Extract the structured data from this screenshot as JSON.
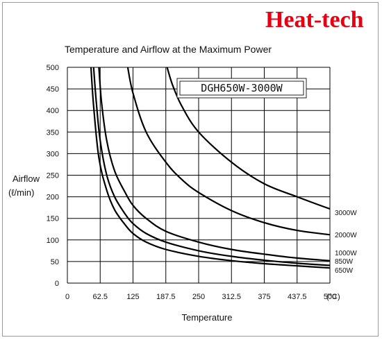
{
  "brand": "Heat-tech",
  "chart_data": {
    "type": "line",
    "title": "Temperature and Airflow at the Maximum Power",
    "model_label": "DGH650W-3000W",
    "xlabel": "Temperature",
    "x_unit": "(°C)",
    "ylabel": "Airflow",
    "y_unit": "(ℓ/min)",
    "xlim": [
      0,
      500
    ],
    "ylim": [
      0,
      500
    ],
    "x_ticks": [
      "0",
      "62.5",
      "125",
      "187.5",
      "250",
      "312.5",
      "375",
      "437.5",
      "500"
    ],
    "y_ticks": [
      "0",
      "50",
      "100",
      "150",
      "200",
      "250",
      "300",
      "350",
      "400",
      "450",
      "500"
    ],
    "grid": true,
    "series": [
      {
        "name": "650W",
        "x": [
          45,
          50,
          60,
          75,
          90,
          110,
          125,
          150,
          187.5,
          250,
          312.5,
          375,
          437.5,
          500,
          535
        ],
        "y": [
          500,
          410,
          290,
          215,
          170,
          135,
          115,
          95,
          78,
          62,
          52,
          45,
          40,
          35,
          33
        ]
      },
      {
        "name": "850W",
        "x": [
          50,
          55,
          62.5,
          75,
          90,
          110,
          125,
          150,
          187.5,
          250,
          312.5,
          375,
          437.5,
          500,
          535
        ],
        "y": [
          500,
          420,
          330,
          250,
          200,
          160,
          138,
          115,
          95,
          75,
          62,
          53,
          46,
          41,
          38
        ]
      },
      {
        "name": "1000W",
        "x": [
          60,
          65,
          75,
          90,
          110,
          125,
          150,
          187.5,
          250,
          312.5,
          375,
          437.5,
          500,
          535
        ],
        "y": [
          500,
          420,
          330,
          260,
          210,
          180,
          150,
          120,
          95,
          78,
          67,
          58,
          52,
          49
        ]
      },
      {
        "name": "2000W",
        "x": [
          115,
          125,
          150,
          187.5,
          218,
          250,
          312.5,
          375,
          437.5,
          500,
          535
        ],
        "y": [
          500,
          440,
          350,
          280,
          240,
          210,
          168,
          140,
          122,
          112,
          106
        ]
      },
      {
        "name": "3000W",
        "x": [
          190,
          200,
          218,
          250,
          312.5,
          375,
          437.5,
          500,
          535
        ],
        "y": [
          500,
          460,
          410,
          350,
          280,
          230,
          200,
          172,
          158
        ]
      }
    ]
  }
}
